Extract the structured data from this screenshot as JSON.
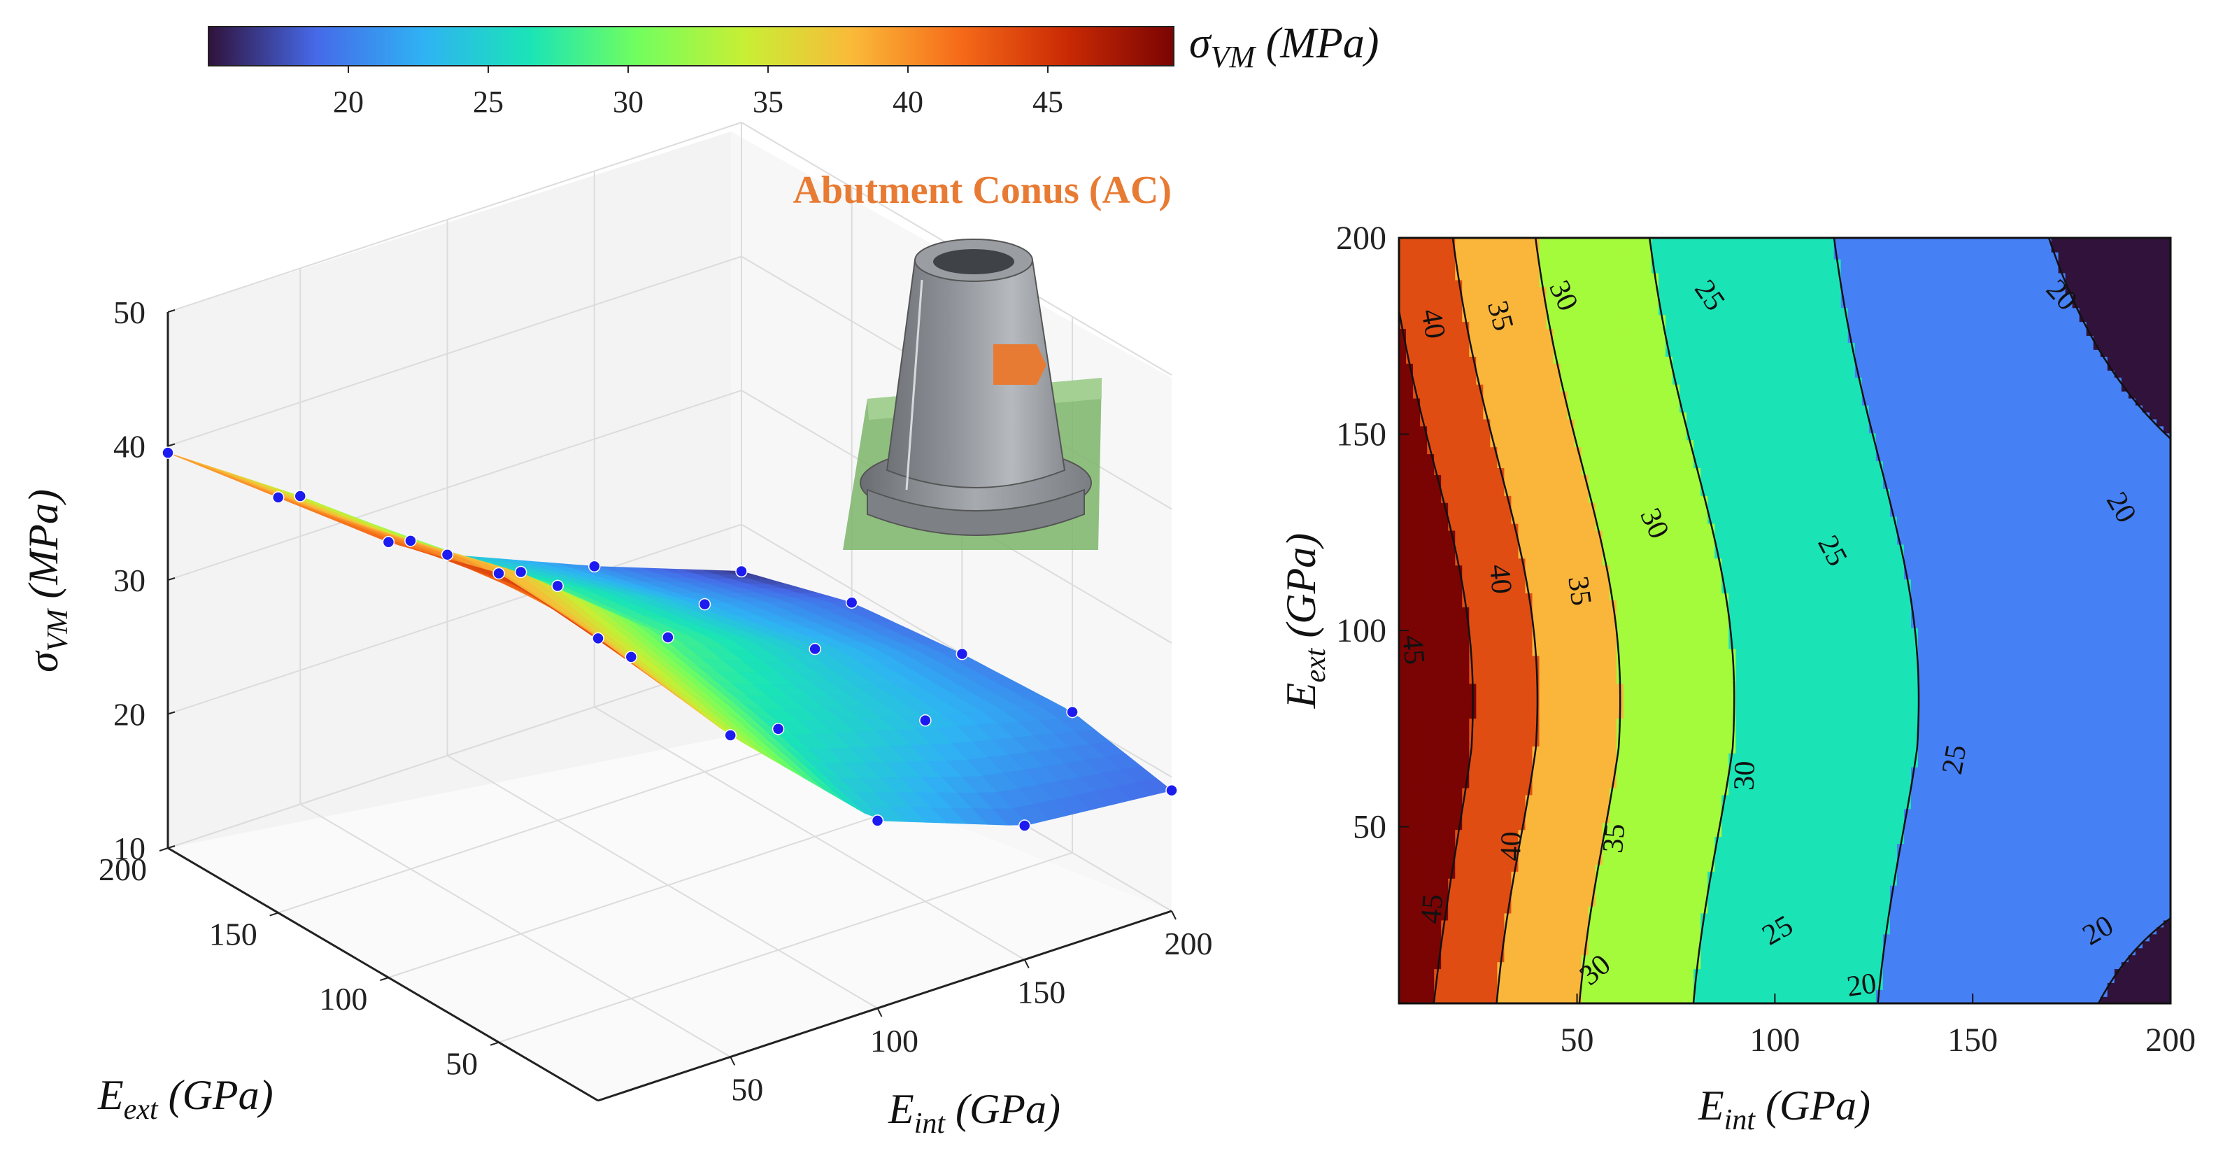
{
  "colorbar": {
    "label_main": "σ",
    "label_sub": "VM",
    "label_unit": " (MPa)",
    "min": 15,
    "max": 49.5,
    "ticks": [
      20,
      25,
      30,
      35,
      40,
      45
    ],
    "tick_labels": [
      "20",
      "25",
      "30",
      "35",
      "40",
      "45"
    ],
    "colors": [
      "#30123b",
      "#4669e8",
      "#2fb2f4",
      "#1ae4b6",
      "#72fe5e",
      "#c8ef34",
      "#faba39",
      "#f66b19",
      "#ca2a04",
      "#7a0403"
    ]
  },
  "inset": {
    "title": "Abutment Conus (AC)",
    "highlight_color": "#e87b34",
    "image_name": "abutment-cone-render"
  },
  "chart_data": [
    {
      "type": "surface3d",
      "title": "",
      "zlabel_main": "σ",
      "zlabel_sub": "VM",
      "zlabel_unit": " (MPa)",
      "xlabel_main": "E",
      "xlabel_sub": "int",
      "xlabel_unit": " (GPa)",
      "ylabel_main": "E",
      "ylabel_sub": "ext",
      "ylabel_unit": " (GPa)",
      "z_ticks": [
        10,
        20,
        30,
        40,
        50
      ],
      "z_tick_labels": [
        "10",
        "20",
        "30",
        "40",
        "50"
      ],
      "x_ticks": [
        50,
        100,
        150,
        200
      ],
      "x_tick_labels": [
        "50",
        "100",
        "150",
        "200"
      ],
      "y_ticks": [
        50,
        100,
        150,
        200
      ],
      "y_tick_labels": [
        "50",
        "100",
        "150",
        "200"
      ],
      "zlim": [
        10,
        50
      ],
      "xlim": [
        5,
        200
      ],
      "ylim": [
        5,
        200
      ],
      "grid": true,
      "samples": {
        "x": [
          5,
          50,
          100,
          150,
          200
        ],
        "y": [
          5,
          50,
          100,
          150,
          200
        ],
        "z": [
          [
            44.5,
            34.0,
            24.0,
            20.0,
            19.0
          ],
          [
            45.0,
            35.5,
            26.5,
            23.5,
            20.5
          ],
          [
            42.5,
            37.0,
            28.5,
            24.0,
            20.0
          ],
          [
            41.0,
            34.5,
            27.5,
            22.5,
            19.0
          ],
          [
            39.5,
            33.0,
            25.0,
            20.5,
            16.5
          ]
        ]
      }
    },
    {
      "type": "contour",
      "xlabel_main": "E",
      "xlabel_sub": "int",
      "xlabel_unit": " (GPa)",
      "ylabel_main": "E",
      "ylabel_sub": "ext",
      "ylabel_unit": " (GPa)",
      "xlim": [
        5,
        200
      ],
      "ylim": [
        5,
        200
      ],
      "x_ticks": [
        50,
        100,
        150,
        200
      ],
      "x_tick_labels": [
        "50",
        "100",
        "150",
        "200"
      ],
      "y_ticks": [
        50,
        100,
        150,
        200
      ],
      "y_tick_labels": [
        "50",
        "100",
        "150",
        "200"
      ],
      "levels": [
        20,
        25,
        30,
        35,
        40,
        45
      ],
      "level_labels": [
        {
          "text": "20",
          "x": 172,
          "y": 185,
          "angle": 48
        },
        {
          "text": "20",
          "x": 187,
          "y": 131,
          "angle": 60
        },
        {
          "text": "20",
          "x": 182,
          "y": 23,
          "angle": -30
        },
        {
          "text": "20",
          "x": 122,
          "y": 9,
          "angle": -8
        },
        {
          "text": "25",
          "x": 83,
          "y": 185,
          "angle": 55
        },
        {
          "text": "25",
          "x": 114,
          "y": 120,
          "angle": 62
        },
        {
          "text": "25",
          "x": 146,
          "y": 67,
          "angle": -80
        },
        {
          "text": "25",
          "x": 101,
          "y": 23,
          "angle": -30
        },
        {
          "text": "30",
          "x": 46,
          "y": 185,
          "angle": 65
        },
        {
          "text": "30",
          "x": 69,
          "y": 127,
          "angle": 65
        },
        {
          "text": "30",
          "x": 93,
          "y": 63,
          "angle": -88
        },
        {
          "text": "30",
          "x": 55,
          "y": 13,
          "angle": -40
        },
        {
          "text": "35",
          "x": 30,
          "y": 180,
          "angle": 75
        },
        {
          "text": "35",
          "x": 50,
          "y": 110,
          "angle": 82
        },
        {
          "text": "35",
          "x": 60,
          "y": 47,
          "angle": -85
        },
        {
          "text": "40",
          "x": 13,
          "y": 178,
          "angle": 80
        },
        {
          "text": "40",
          "x": 30,
          "y": 113,
          "angle": 85
        },
        {
          "text": "40",
          "x": 34,
          "y": 45,
          "angle": -88
        },
        {
          "text": "45",
          "x": 8,
          "y": 95,
          "angle": 85
        },
        {
          "text": "45",
          "x": 14,
          "y": 29,
          "angle": -85
        }
      ]
    }
  ]
}
